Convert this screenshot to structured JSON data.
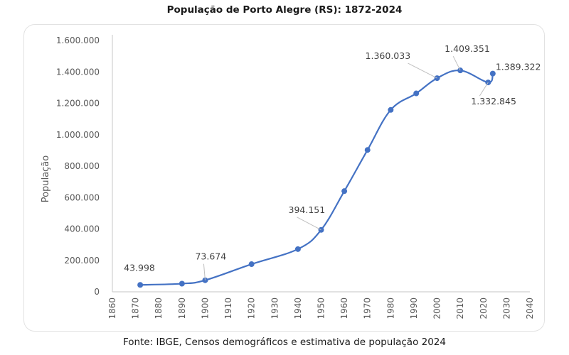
{
  "chart_data": {
    "type": "line",
    "title": "População de Porto Alegre (RS): 1872-2024",
    "xlabel": "",
    "ylabel": "População",
    "source": "Fonte: IBGE, Censos demográficos e estimativa de população 2024",
    "xlim": [
      1860,
      2040
    ],
    "ylim": [
      0,
      1600000
    ],
    "x_ticks": [
      "1860",
      "1870",
      "1880",
      "1890",
      "1900",
      "1910",
      "1920",
      "1930",
      "1940",
      "1950",
      "1960",
      "1970",
      "1980",
      "1990",
      "2000",
      "2010",
      "2020",
      "2030",
      "2040"
    ],
    "y_ticks": [
      "0",
      "200.000",
      "400.000",
      "600.000",
      "800.000",
      "1.000.000",
      "1.200.000",
      "1.400.000",
      "1.600.000"
    ],
    "grid": false,
    "legend": "none",
    "line_color": "#4472C4",
    "series": [
      {
        "name": "População",
        "points": [
          {
            "x": 1872,
            "y": 43998,
            "label": "43.998"
          },
          {
            "x": 1890,
            "y": 52000,
            "label": ""
          },
          {
            "x": 1900,
            "y": 73674,
            "label": "73.674"
          },
          {
            "x": 1920,
            "y": 176000,
            "label": ""
          },
          {
            "x": 1940,
            "y": 272000,
            "label": ""
          },
          {
            "x": 1950,
            "y": 394151,
            "label": "394.151"
          },
          {
            "x": 1960,
            "y": 641000,
            "label": ""
          },
          {
            "x": 1970,
            "y": 903000,
            "label": ""
          },
          {
            "x": 1980,
            "y": 1158000,
            "label": ""
          },
          {
            "x": 1991,
            "y": 1263000,
            "label": ""
          },
          {
            "x": 2000,
            "y": 1360033,
            "label": "1.360.033"
          },
          {
            "x": 2010,
            "y": 1409351,
            "label": "1.409.351"
          },
          {
            "x": 2022,
            "y": 1332845,
            "label": "1.332.845"
          },
          {
            "x": 2024,
            "y": 1389322,
            "label": "1.389.322"
          }
        ]
      }
    ]
  }
}
